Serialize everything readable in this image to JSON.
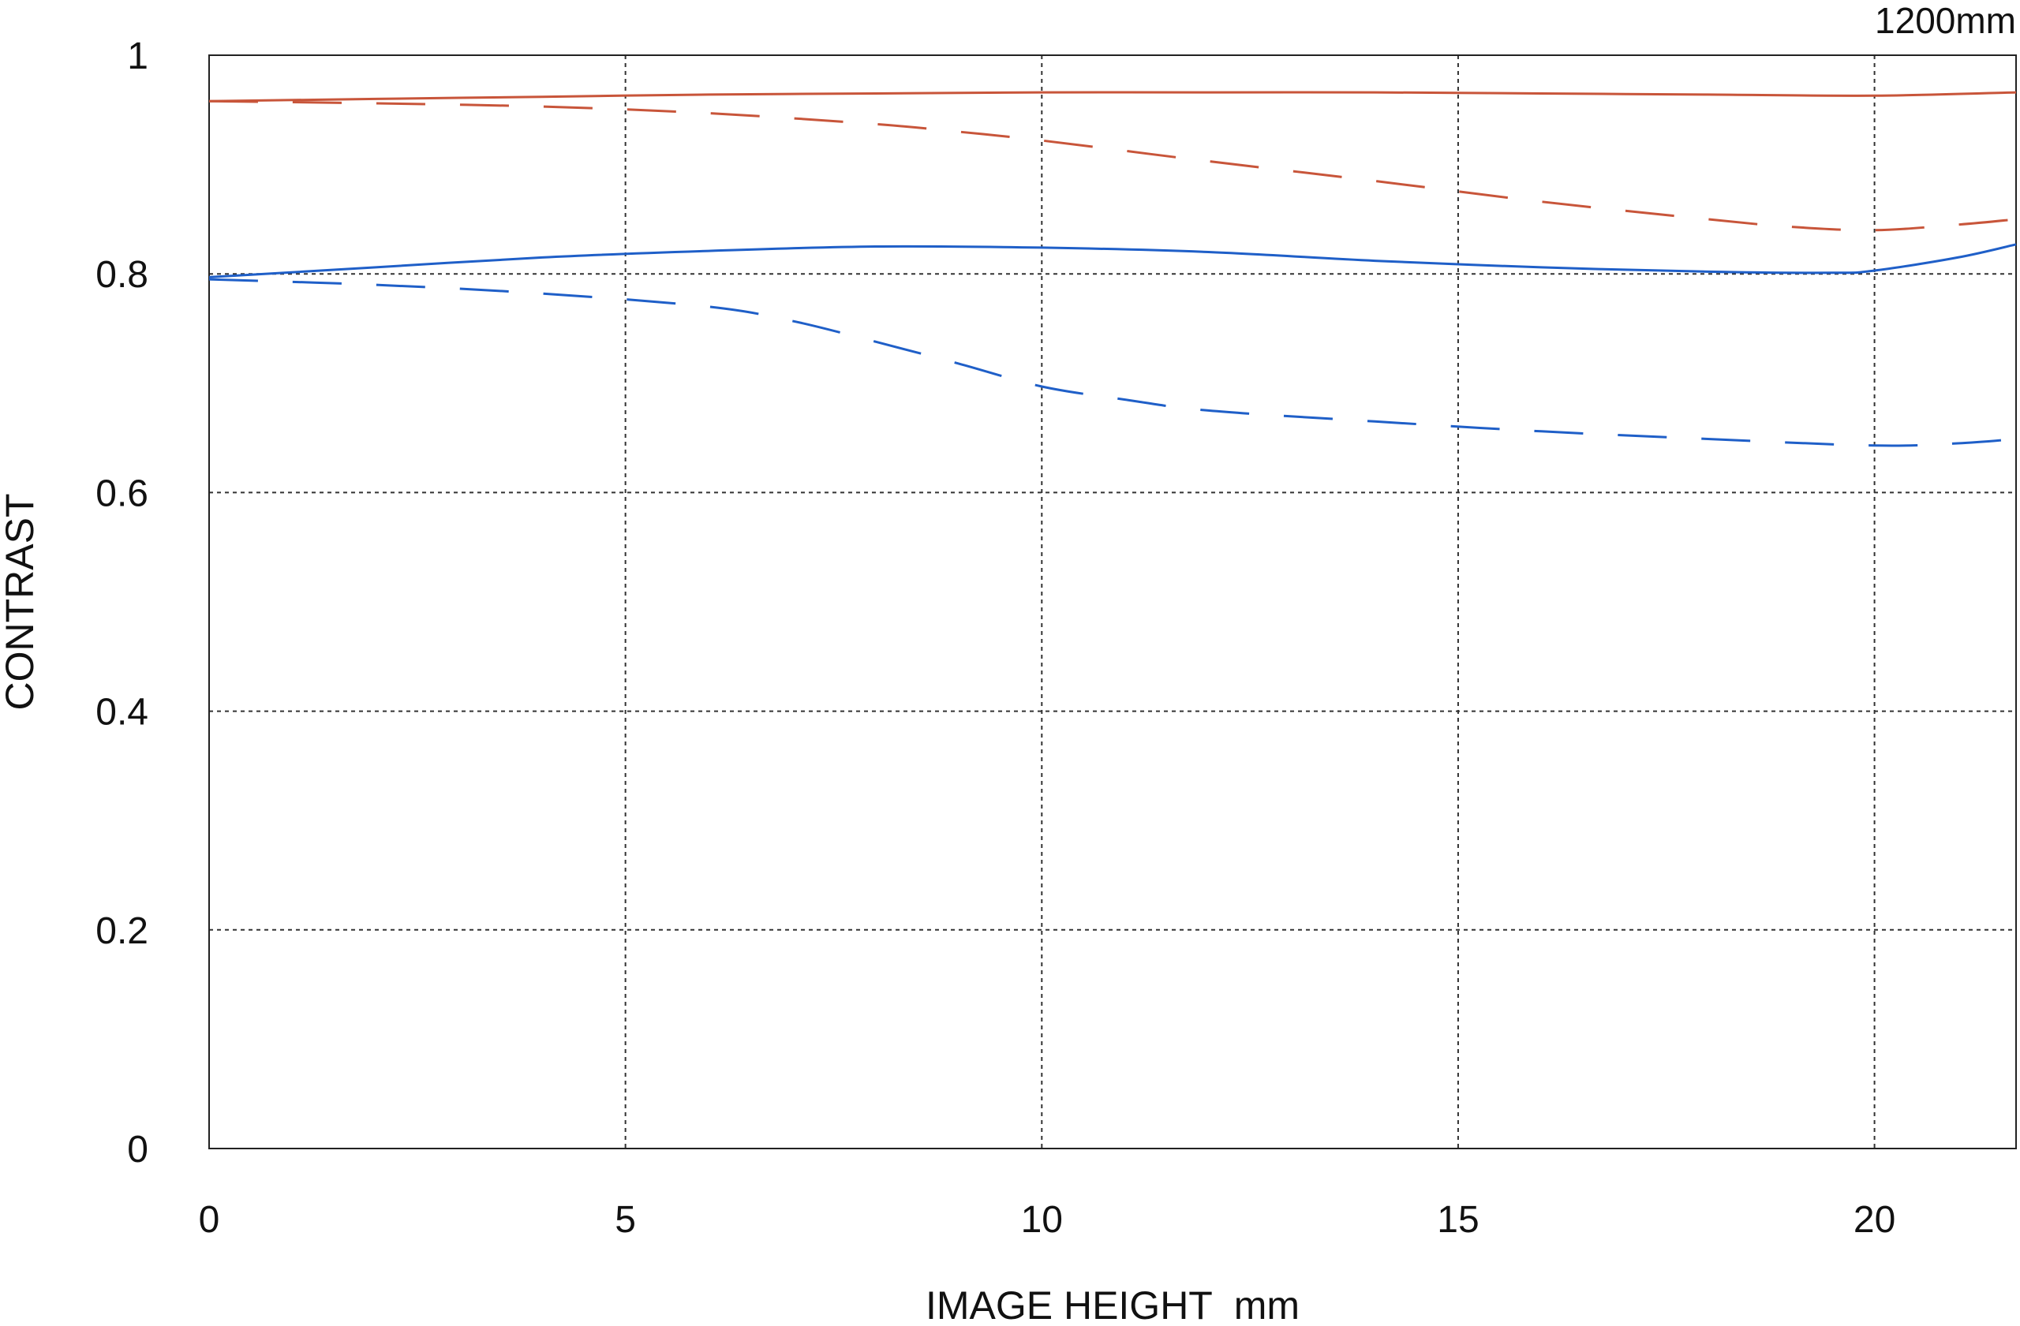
{
  "chart_data": {
    "type": "line",
    "title": "",
    "corner_label": "1200mm",
    "xlabel": "IMAGE HEIGHT  mm",
    "ylabel": "CONTRAST",
    "xlim": [
      0,
      21.7
    ],
    "ylim": [
      0,
      1
    ],
    "x_ticks": [
      0,
      5,
      10,
      15,
      20
    ],
    "x_tick_labels": [
      "0",
      "5",
      "10",
      "15",
      "20"
    ],
    "y_ticks": [
      0,
      0.2,
      0.4,
      0.6,
      0.8,
      1
    ],
    "y_tick_labels": [
      "0",
      "0.2",
      "0.4",
      "0.6",
      "0.8",
      "1"
    ],
    "grid": true,
    "legend": "none",
    "series": [
      {
        "color": "#c8553a",
        "style": "solid",
        "x": [
          0,
          2,
          4,
          6,
          8,
          10,
          12,
          14,
          16,
          18,
          20,
          21.7
        ],
        "y": [
          0.958,
          0.96,
          0.962,
          0.964,
          0.965,
          0.966,
          0.966,
          0.966,
          0.965,
          0.964,
          0.963,
          0.966
        ]
      },
      {
        "color": "#c8553a",
        "style": "dashed",
        "x": [
          0,
          2,
          4,
          6,
          8,
          9,
          10,
          12,
          14,
          16,
          18,
          19,
          20,
          21,
          21.7
        ],
        "y": [
          0.958,
          0.956,
          0.953,
          0.947,
          0.937,
          0.93,
          0.922,
          0.903,
          0.885,
          0.866,
          0.85,
          0.843,
          0.84,
          0.845,
          0.85
        ]
      },
      {
        "color": "#1f5fc8",
        "style": "solid",
        "x": [
          0,
          2,
          4,
          6,
          8,
          10,
          12,
          14,
          16,
          18,
          19.5,
          20,
          21,
          21.7
        ],
        "y": [
          0.797,
          0.806,
          0.815,
          0.821,
          0.825,
          0.824,
          0.82,
          0.812,
          0.806,
          0.802,
          0.801,
          0.803,
          0.815,
          0.827
        ]
      },
      {
        "color": "#1f5fc8",
        "style": "dashed",
        "x": [
          0,
          2,
          4,
          6,
          7,
          8,
          9,
          10,
          11,
          12,
          14,
          16,
          18,
          20,
          21,
          21.7
        ],
        "y": [
          0.795,
          0.79,
          0.782,
          0.77,
          0.757,
          0.738,
          0.718,
          0.697,
          0.685,
          0.675,
          0.665,
          0.656,
          0.649,
          0.643,
          0.645,
          0.649
        ]
      }
    ]
  }
}
